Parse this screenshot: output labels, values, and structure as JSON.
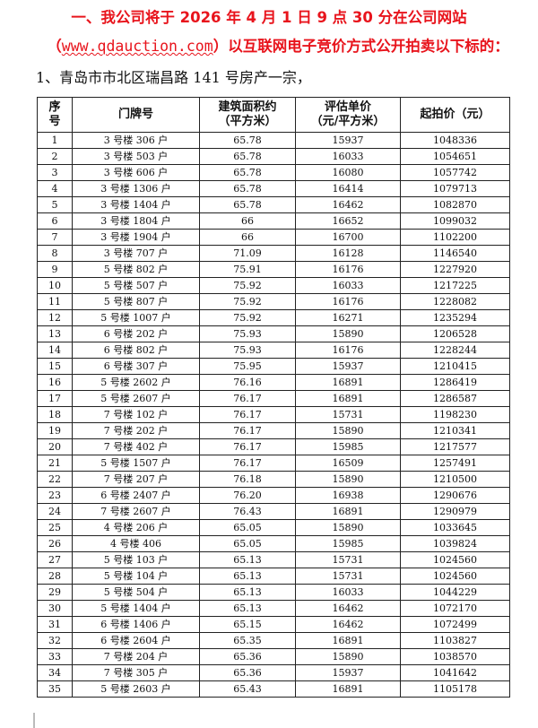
{
  "notice": {
    "line1": "一、我公司将于 2026 年 4 月 1 日 9 点 30 分在公司网站",
    "line2_open": "（",
    "line2_url": "www.qdauction.com",
    "line2_rest": "）以互联网电子竞价方式公开拍卖以下标的：",
    "subject": "1、青岛市市北区瑞昌路 141 号房产一宗，",
    "accent_color": "#e8141c"
  },
  "table": {
    "headers": [
      "序号",
      "门牌号",
      "建筑面积约（平方米）",
      "评估单价（元/平方米）",
      "起拍价（元）"
    ],
    "header_lines": [
      [
        "序",
        "号"
      ],
      [
        "门牌号"
      ],
      [
        "建筑面积约",
        "（平方米）"
      ],
      [
        "评估单价",
        "（元/平方米）"
      ],
      [
        "起拍价（元）"
      ]
    ],
    "rows": [
      [
        "1",
        "3 号楼 306 户",
        "65.78",
        "15937",
        "1048336"
      ],
      [
        "2",
        "3 号楼 503 户",
        "65.78",
        "16033",
        "1054651"
      ],
      [
        "3",
        "3 号楼 606 户",
        "65.78",
        "16080",
        "1057742"
      ],
      [
        "4",
        "3 号楼 1306 户",
        "65.78",
        "16414",
        "1079713"
      ],
      [
        "5",
        "3 号楼 1404 户",
        "65.78",
        "16462",
        "1082870"
      ],
      [
        "6",
        "3 号楼 1804 户",
        "66",
        "16652",
        "1099032"
      ],
      [
        "7",
        "3 号楼 1904 户",
        "66",
        "16700",
        "1102200"
      ],
      [
        "8",
        "3 号楼 707 户",
        "71.09",
        "16128",
        "1146540"
      ],
      [
        "9",
        "5 号楼 802 户",
        "75.91",
        "16176",
        "1227920"
      ],
      [
        "10",
        "5 号楼 507 户",
        "75.92",
        "16033",
        "1217225"
      ],
      [
        "11",
        "5 号楼 807 户",
        "75.92",
        "16176",
        "1228082"
      ],
      [
        "12",
        "5 号楼 1007 户",
        "75.92",
        "16271",
        "1235294"
      ],
      [
        "13",
        "6 号楼 202 户",
        "75.93",
        "15890",
        "1206528"
      ],
      [
        "14",
        "6 号楼 802 户",
        "75.93",
        "16176",
        "1228244"
      ],
      [
        "15",
        "6 号楼 307 户",
        "75.95",
        "15937",
        "1210415"
      ],
      [
        "16",
        "5 号楼 2602 户",
        "76.16",
        "16891",
        "1286419"
      ],
      [
        "17",
        "5 号楼 2607 户",
        "76.17",
        "16891",
        "1286587"
      ],
      [
        "18",
        "7 号楼 102 户",
        "76.17",
        "15731",
        "1198230"
      ],
      [
        "19",
        "7 号楼 202 户",
        "76.17",
        "15890",
        "1210341"
      ],
      [
        "20",
        "7 号楼 402 户",
        "76.17",
        "15985",
        "1217577"
      ],
      [
        "21",
        "5 号楼 1507 户",
        "76.17",
        "16509",
        "1257491"
      ],
      [
        "22",
        "7 号楼 207 户",
        "76.18",
        "15890",
        "1210500"
      ],
      [
        "23",
        "6 号楼 2407 户",
        "76.20",
        "16938",
        "1290676"
      ],
      [
        "24",
        "7 号楼 2607 户",
        "76.43",
        "16891",
        "1290979"
      ],
      [
        "25",
        "4 号楼 206 户",
        "65.05",
        "15890",
        "1033645"
      ],
      [
        "26",
        "4 号楼 406",
        "65.05",
        "15985",
        "1039824"
      ],
      [
        "27",
        "5 号楼 103 户",
        "65.13",
        "15731",
        "1024560"
      ],
      [
        "28",
        "5 号楼 104 户",
        "65.13",
        "15731",
        "1024560"
      ],
      [
        "29",
        "5 号楼 504 户",
        "65.13",
        "16033",
        "1044229"
      ],
      [
        "30",
        "5 号楼 1404 户",
        "65.13",
        "16462",
        "1072170"
      ],
      [
        "31",
        "6 号楼 1406 户",
        "65.15",
        "16462",
        "1072499"
      ],
      [
        "32",
        "6 号楼 2604 户",
        "65.35",
        "16891",
        "1103827"
      ],
      [
        "33",
        "7 号楼 204 户",
        "65.36",
        "15890",
        "1038570"
      ],
      [
        "34",
        "7 号楼 305 户",
        "65.36",
        "15937",
        "1041642"
      ],
      [
        "35",
        "5 号楼 2603 户",
        "65.43",
        "16891",
        "1105178"
      ]
    ]
  }
}
